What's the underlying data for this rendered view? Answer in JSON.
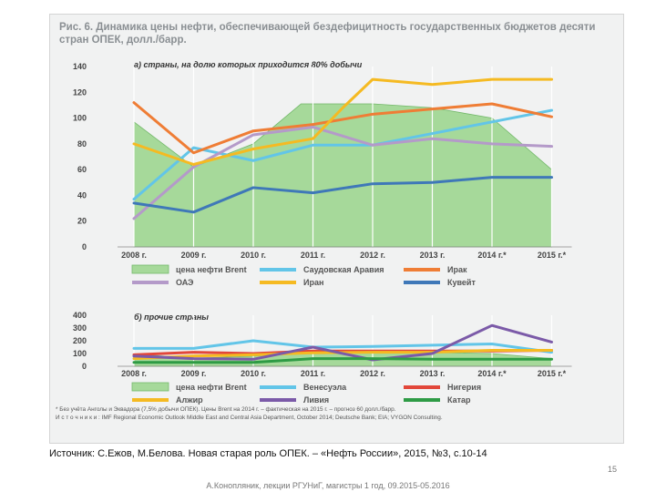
{
  "figure_title": "Рис. 6. Динамика цены нефти, обеспечивающей бездефицитность государственных бюджетов десяти стран ОПЕК, долл./барр.",
  "notes": {
    "footnote": "* Без учёта Анголы и Эквадора (7,5% добычи ОПЕК). Цены Brent на 2014 г. – фактическая на 2015 г. – прогноз 60 долл./барр.",
    "sources": "И с т о ч н и к и : IMF Regional Economic Outlook Middle East and Central Asia Department, October 2014; Deutsche Bank; EIA; VYGON Consulting."
  },
  "source_line": "Источник: С.Ежов, М.Белова. Новая старая роль ОПЕК. – «Нефть России», 2015, №3, с.10-14",
  "page_number": "15",
  "footer": "А.Конопляник, лекции РГУНиГ, магистры 1 год, 09.2015-05.2016",
  "chart_data": [
    {
      "type": "line",
      "title": "а) страны, на долю которых приходится 80% добычи",
      "categories": [
        "2008 г.",
        "2009 г.",
        "2010 г.",
        "2011 г.",
        "2012 г.",
        "2013 г.",
        "2014 г.*",
        "2015 г.*"
      ],
      "ylim": [
        0,
        140
      ],
      "yticks": [
        0,
        20,
        40,
        60,
        80,
        100,
        120,
        140
      ],
      "area": {
        "name": "цена нефти Brent",
        "color": "#a6d99a",
        "x": [
          0,
          1,
          2,
          2.8,
          3,
          4,
          5,
          6,
          7
        ],
        "values": [
          97,
          62,
          80,
          111,
          111,
          111,
          108,
          100,
          60
        ]
      },
      "series": [
        {
          "name": "Саудовская Аравия",
          "color": "#62c5e8",
          "x": [
            0,
            1,
            2,
            3,
            4,
            5,
            6,
            7
          ],
          "values": [
            37,
            77,
            67,
            79,
            79,
            88,
            97,
            106
          ]
        },
        {
          "name": "Ирак",
          "color": "#ef7d35",
          "x": [
            0,
            1,
            2,
            3,
            4,
            5,
            6,
            7
          ],
          "values": [
            112,
            73,
            90,
            95,
            103,
            107,
            111,
            101
          ]
        },
        {
          "name": "ОАЭ",
          "color": "#b49ac9",
          "x": [
            0,
            1,
            2,
            3,
            4,
            5,
            6,
            7
          ],
          "values": [
            22,
            62,
            87,
            93,
            79,
            84,
            80,
            78
          ]
        },
        {
          "name": "Иран",
          "color": "#f5ba22",
          "x": [
            0,
            1,
            2,
            3,
            3.5,
            4,
            5,
            6,
            7
          ],
          "values": [
            80,
            64,
            76,
            84,
            108,
            130,
            126,
            130,
            130
          ]
        },
        {
          "name": "Кувейт",
          "color": "#3f78b8",
          "x": [
            0,
            1,
            2,
            3,
            4,
            5,
            6,
            7
          ],
          "values": [
            34,
            27,
            46,
            42,
            49,
            50,
            54,
            54
          ]
        }
      ]
    },
    {
      "type": "line",
      "title": "б) прочие страны",
      "categories": [
        "2008 г.",
        "2009 г.",
        "2010 г.",
        "2011 г.",
        "2012 г.",
        "2013 г.",
        "2014 г.*",
        "2015 г.*"
      ],
      "ylim": [
        0,
        400
      ],
      "yticks": [
        0,
        100,
        200,
        300,
        400
      ],
      "area": {
        "name": "цена нефти Brent",
        "color": "#a6d99a",
        "x": [
          0,
          1,
          2,
          3,
          4,
          5,
          6,
          7
        ],
        "values": [
          97,
          62,
          80,
          111,
          111,
          108,
          100,
          60
        ]
      },
      "series": [
        {
          "name": "Венесуэла",
          "color": "#62c5e8",
          "x": [
            0,
            1,
            2,
            3,
            4,
            5,
            6,
            7
          ],
          "values": [
            140,
            140,
            200,
            150,
            155,
            165,
            175,
            110
          ]
        },
        {
          "name": "Нигерия",
          "color": "#e2473a",
          "x": [
            0,
            1,
            2,
            3,
            4,
            5,
            6,
            7
          ],
          "values": [
            90,
            110,
            100,
            120,
            120,
            120,
            120,
            125
          ]
        },
        {
          "name": "Алжир",
          "color": "#f5ba22",
          "x": [
            0,
            1,
            2,
            3,
            4,
            5,
            6,
            7
          ],
          "values": [
            60,
            80,
            90,
            105,
            110,
            110,
            125,
            125
          ]
        },
        {
          "name": "Ливия",
          "color": "#7b5aa8",
          "x": [
            0,
            1,
            2,
            3,
            4,
            5,
            6,
            7
          ],
          "values": [
            80,
            60,
            55,
            150,
            50,
            100,
            320,
            190
          ]
        },
        {
          "name": "Катар",
          "color": "#2e9b45",
          "x": [
            0,
            1,
            2,
            3,
            4,
            5,
            6,
            7
          ],
          "values": [
            30,
            30,
            30,
            60,
            60,
            55,
            55,
            55
          ]
        }
      ]
    }
  ]
}
